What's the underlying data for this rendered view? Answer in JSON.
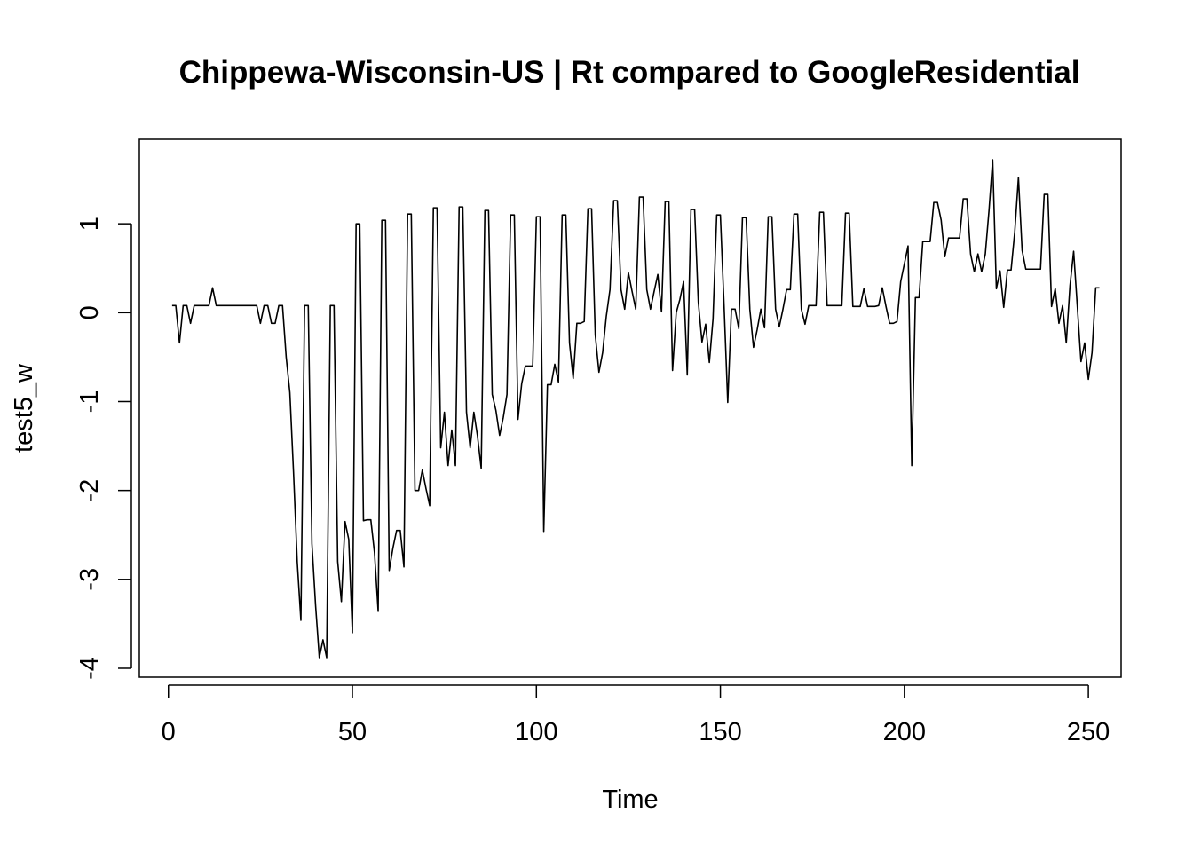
{
  "chart_data": {
    "type": "line",
    "title": "Chippewa-Wisconsin-US | Rt compared to GoogleResidential",
    "xlabel": "Time",
    "ylabel": "test5_w",
    "xlim": [
      -7.9,
      258.9
    ],
    "ylim": [
      -4.1,
      1.95
    ],
    "x_ticks": [
      0,
      50,
      100,
      150,
      200,
      250
    ],
    "y_ticks": [
      -4,
      -3,
      -2,
      -1,
      0,
      1
    ],
    "x_tick_labels": [
      "0",
      "50",
      "100",
      "150",
      "200",
      "250"
    ],
    "y_tick_labels": [
      "-4",
      "-3",
      "-2",
      "-1",
      "0",
      "1"
    ],
    "grid": false,
    "legend": "none",
    "x_start": 1,
    "series": [
      {
        "values": [
          0.08,
          0.08,
          -0.34,
          0.08,
          0.08,
          -0.12,
          0.08,
          0.08,
          0.08,
          0.08,
          0.08,
          0.28,
          0.08,
          0.08,
          0.08,
          0.08,
          0.08,
          0.08,
          0.08,
          0.08,
          0.08,
          0.08,
          0.08,
          0.08,
          -0.12,
          0.08,
          0.08,
          -0.12,
          -0.12,
          0.08,
          0.08,
          -0.5,
          -0.9,
          -1.8,
          -2.8,
          -3.46,
          0.08,
          0.08,
          -2.6,
          -3.3,
          -3.88,
          -3.68,
          -3.88,
          0.08,
          0.08,
          -2.8,
          -3.25,
          -2.35,
          -2.55,
          -3.6,
          1.0,
          1.0,
          -2.34,
          -2.33,
          -2.33,
          -2.7,
          -3.36,
          1.04,
          1.04,
          -2.9,
          -2.65,
          -2.45,
          -2.45,
          -2.86,
          1.11,
          1.11,
          -2.0,
          -2.0,
          -1.77,
          -1.98,
          -2.17,
          1.18,
          1.18,
          -1.52,
          -1.12,
          -1.72,
          -1.32,
          -1.72,
          1.19,
          1.19,
          -1.12,
          -1.52,
          -1.12,
          -1.39,
          -1.75,
          1.15,
          1.15,
          -0.92,
          -1.1,
          -1.38,
          -1.18,
          -0.92,
          1.1,
          1.1,
          -1.2,
          -0.8,
          -0.6,
          -0.6,
          -0.6,
          1.08,
          1.08,
          -2.46,
          -0.81,
          -0.81,
          -0.58,
          -0.78,
          1.1,
          1.1,
          -0.34,
          -0.74,
          -0.12,
          -0.12,
          -0.1,
          1.17,
          1.17,
          -0.25,
          -0.67,
          -0.45,
          -0.04,
          0.26,
          1.26,
          1.26,
          0.26,
          0.04,
          0.45,
          0.24,
          0.04,
          1.3,
          1.3,
          0.26,
          0.04,
          0.24,
          0.43,
          0.01,
          1.25,
          1.25,
          -0.65,
          0.0,
          0.15,
          0.35,
          -0.7,
          1.16,
          1.16,
          0.12,
          -0.33,
          -0.13,
          -0.56,
          -0.07,
          1.1,
          1.1,
          0.08,
          -1.01,
          0.04,
          0.04,
          -0.18,
          1.07,
          1.07,
          0.04,
          -0.39,
          -0.19,
          0.04,
          -0.17,
          1.08,
          1.08,
          0.04,
          -0.16,
          0.04,
          0.26,
          0.26,
          1.11,
          1.11,
          0.04,
          -0.13,
          0.08,
          0.08,
          0.08,
          1.13,
          1.13,
          0.08,
          0.08,
          0.08,
          0.08,
          0.08,
          1.12,
          1.12,
          0.07,
          0.07,
          0.07,
          0.27,
          0.07,
          0.07,
          0.07,
          0.08,
          0.28,
          0.07,
          -0.12,
          -0.12,
          -0.1,
          0.35,
          0.55,
          0.75,
          -1.72,
          0.17,
          0.17,
          0.8,
          0.8,
          0.8,
          1.24,
          1.24,
          1.04,
          0.63,
          0.84,
          0.84,
          0.84,
          0.84,
          1.28,
          1.28,
          0.66,
          0.46,
          0.66,
          0.46,
          0.66,
          1.15,
          1.72,
          0.27,
          0.47,
          0.06,
          0.48,
          0.48,
          0.91,
          1.52,
          0.7,
          0.49,
          0.49,
          0.49,
          0.49,
          0.49,
          1.33,
          1.33,
          0.07,
          0.27,
          -0.12,
          0.08,
          -0.34,
          0.3,
          0.69,
          0.07,
          -0.55,
          -0.34,
          -0.75,
          -0.45,
          0.28,
          0.28
        ]
      }
    ]
  }
}
